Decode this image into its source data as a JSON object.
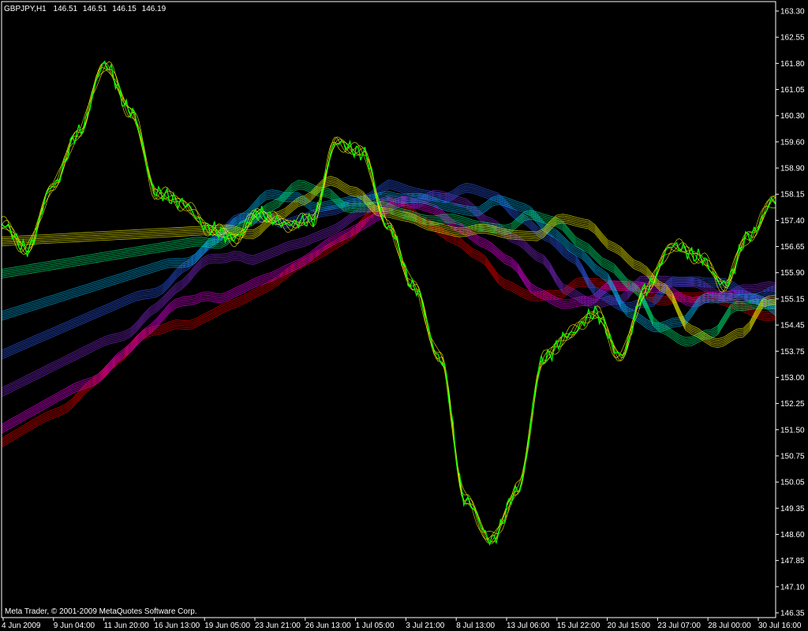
{
  "header": {
    "symbol": "GBPJPY,H1",
    "open": "146.51",
    "high": "146.51",
    "low": "146.15",
    "close": "146.19"
  },
  "footer": {
    "copyright": "Meta Trader, © 2001-2009 MetaQuotes Software Corp."
  },
  "colors": {
    "background": "#000000",
    "axis": "#ffffff",
    "price_line": "#00ff00",
    "ma_overlay": "#ffff00"
  },
  "chart_data": {
    "type": "line",
    "title": "GBPJPY,H1",
    "x_tick_labels": [
      "4 Jun 2009",
      "9 Jun 04:00",
      "11 Jun 20:00",
      "16 Jun 13:00",
      "19 Jun 05:00",
      "23 Jun 21:00",
      "26 Jun 13:00",
      "1 Jul 05:00",
      "3 Jul 21:00",
      "8 Jul 13:00",
      "13 Jul 06:00",
      "15 Jul 22:00",
      "20 Jul 15:00",
      "23 Jul 07:00",
      "28 Jul 00:00",
      "30 Jul 16:00"
    ],
    "y_tick_labels": [
      "163.30",
      "162.55",
      "161.80",
      "161.05",
      "160.30",
      "159.60",
      "158.90",
      "158.15",
      "157.40",
      "156.65",
      "155.90",
      "155.15",
      "154.45",
      "153.75",
      "153.00",
      "152.25",
      "151.50",
      "150.75",
      "150.05",
      "149.35",
      "148.60",
      "147.85",
      "147.10",
      "146.35"
    ],
    "ylim": [
      146.35,
      163.3
    ],
    "price_series": {
      "name": "GBPJPY,H1",
      "x": [
        "4 Jun 2009",
        "6 Jun",
        "9 Jun 04:00",
        "10 Jun",
        "11 Jun 20:00",
        "13 Jun",
        "16 Jun 13:00",
        "17 Jun",
        "19 Jun 05:00",
        "21 Jun",
        "23 Jun 21:00",
        "25 Jun",
        "26 Jun 13:00",
        "28 Jun",
        "1 Jul 05:00",
        "2 Jul",
        "3 Jul 21:00",
        "6 Jul",
        "8 Jul 13:00",
        "10 Jul",
        "13 Jul 06:00",
        "14 Jul",
        "15 Jul 22:00",
        "18 Jul",
        "20 Jul 15:00",
        "22 Jul",
        "23 Jul 07:00",
        "26 Jul",
        "28 Jul 00:00",
        "29 Jul",
        "30 Jul 16:00"
      ],
      "values": [
        157.3,
        156.6,
        158.4,
        159.9,
        161.8,
        160.5,
        158.2,
        157.9,
        157.2,
        156.9,
        157.6,
        157.3,
        157.4,
        159.6,
        159.3,
        157.2,
        155.5,
        153.5,
        149.5,
        148.4,
        149.8,
        153.5,
        154.2,
        154.8,
        153.6,
        155.5,
        156.7,
        156.4,
        155.6,
        157.0,
        158.0
      ]
    },
    "band_series": [
      {
        "start": 150.2,
        "end": 157.8,
        "mid_end": 154.6,
        "color": "#ff0000"
      },
      {
        "start": 150.5,
        "end": 157.9,
        "mid_end": 154.9,
        "color": "#ff00ff"
      },
      {
        "start": 151.6,
        "end": 158.3,
        "mid_end": 155.4,
        "color": "#8a2be2"
      },
      {
        "start": 152.8,
        "end": 158.8,
        "mid_end": 155.6,
        "color": "#3060ff"
      },
      {
        "start": 154.1,
        "end": 158.6,
        "mid_end": 155.3,
        "color": "#00bfff"
      },
      {
        "start": 155.6,
        "end": 158.0,
        "mid_end": 155.4,
        "color": "#00ff7f"
      },
      {
        "start": 156.8,
        "end": 157.6,
        "mid_end": 155.9,
        "color": "#ffff00"
      }
    ]
  }
}
